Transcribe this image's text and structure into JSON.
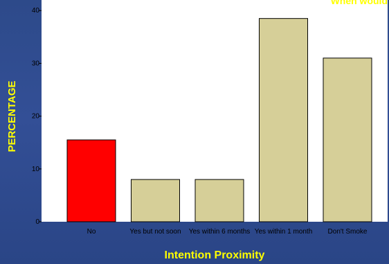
{
  "chart_data": {
    "type": "bar",
    "title": "When would",
    "xlabel": "Intention Proximity",
    "ylabel": "PERCENTAGE",
    "categories": [
      "No",
      "Yes but not soon",
      "Yes within 6 months",
      "Yes within 1 month",
      "Don't Smoke"
    ],
    "values": [
      15.5,
      8.0,
      8.0,
      38.5,
      31.0
    ],
    "ylim": [
      0,
      42
    ],
    "yticks": [
      0,
      10,
      20,
      30,
      40
    ],
    "grid": false,
    "colors": {
      "plot_background": "#ffffff",
      "bar_default": "#d6cf98",
      "bar_highlight": "#ff0000",
      "label_text": "#ffff00",
      "page_background": "#2d4a8a"
    },
    "highlight_index": 0
  }
}
